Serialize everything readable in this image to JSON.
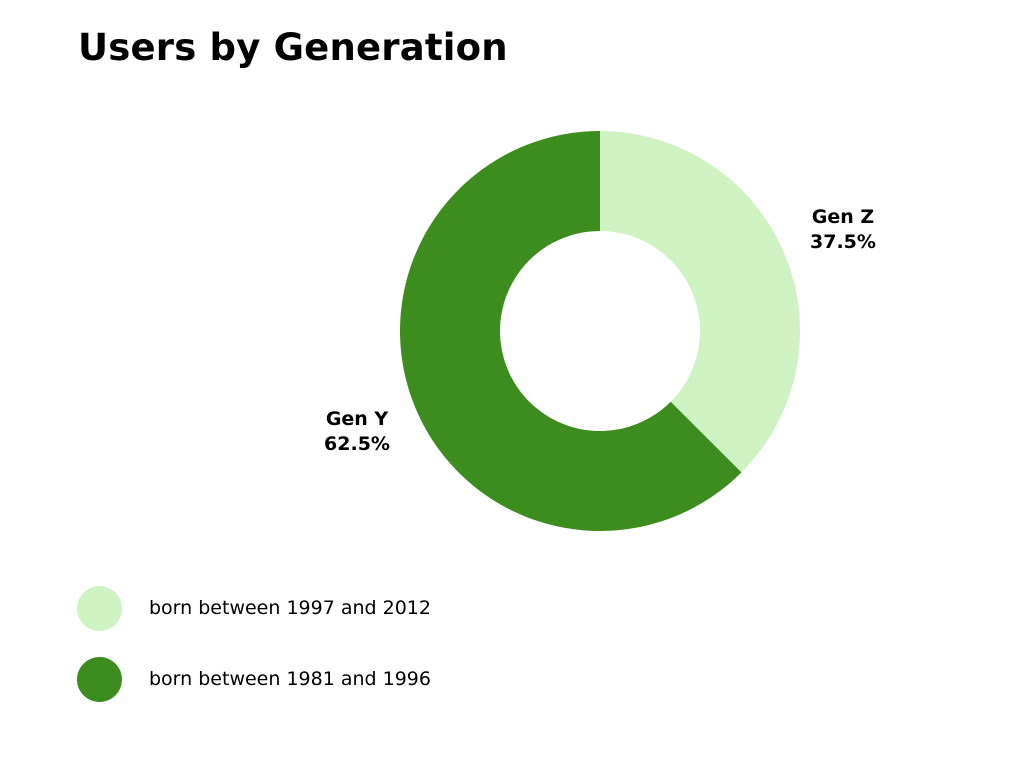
{
  "title": "Users by Generation",
  "colors": {
    "gen_z": "#cff2c3",
    "gen_y": "#3c8c1e"
  },
  "chart_data": {
    "type": "pie",
    "title": "Users by Generation",
    "donut": true,
    "slices": [
      {
        "label": "Gen Z",
        "value": 37.5,
        "display": "37.5%",
        "color": "#cff2c3",
        "legend": "born between 1997 and 2012"
      },
      {
        "label": "Gen Y",
        "value": 62.5,
        "display": "62.5%",
        "color": "#3c8c1e",
        "legend": "born between 1981 and 1996"
      }
    ],
    "legend_position": "bottom-left"
  }
}
